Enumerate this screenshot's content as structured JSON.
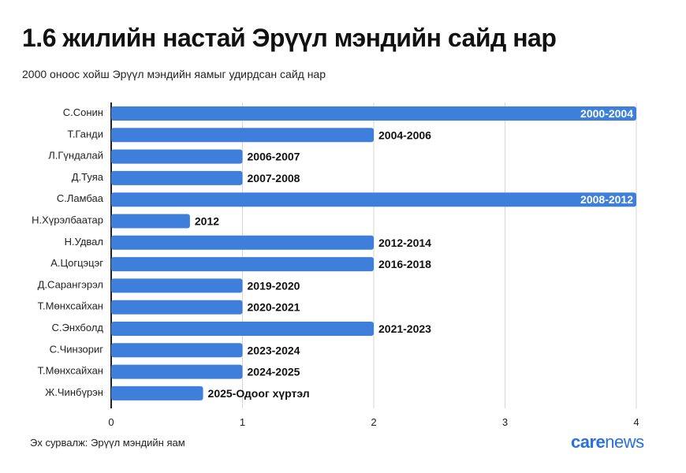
{
  "title": "1.6 жилийн настай Эрүүл мэндийн сайд нар",
  "subtitle": "2000 оноос хойш Эрүүл мэндийн яамыг удирдсан сайд нар",
  "source": "Эх сурвалж: Эрүүл мэндийн яам",
  "logo": {
    "part1": "care",
    "part2": "news"
  },
  "colors": {
    "bar": "#3f7fdc",
    "grid": "#d6d6d6",
    "axis": "#222222",
    "logo": "#2a6fe0"
  },
  "chart_data": {
    "type": "bar",
    "orientation": "horizontal",
    "title": "1.6 жилийн настай Эрүүл мэндийн сайд нар",
    "xlabel": "",
    "ylabel": "",
    "xlim": [
      0,
      4
    ],
    "xticks": [
      0,
      1,
      2,
      3,
      4
    ],
    "grid": true,
    "categories": [
      "С.Сонин",
      "Т.Ганди",
      "Л.Гүндалай",
      "Д.Туяа",
      "С.Ламбаа",
      "Н.Хүрэлбаатар",
      "Н.Удвал",
      "А.Цогцэцэг",
      "Д.Сарангэрэл",
      "Т.Мөнхсайхан",
      "С.Энхболд",
      "С.Чинзориг",
      "Т.Мөнхсайхан",
      "Ж.Чинбүрэн"
    ],
    "values": [
      4,
      2,
      1,
      1,
      4,
      0.6,
      2,
      2,
      1,
      1,
      2,
      1,
      1,
      0.7
    ],
    "labels": [
      "2000-2004",
      "2004-2006",
      "2006-2007",
      "2007-2008",
      "2008-2012",
      "2012",
      "2012-2014",
      "2016-2018",
      "2019-2020",
      "2020-2021",
      "2021-2023",
      "2023-2024",
      "2024-2025",
      "2025-Одоог хүртэл"
    ]
  }
}
